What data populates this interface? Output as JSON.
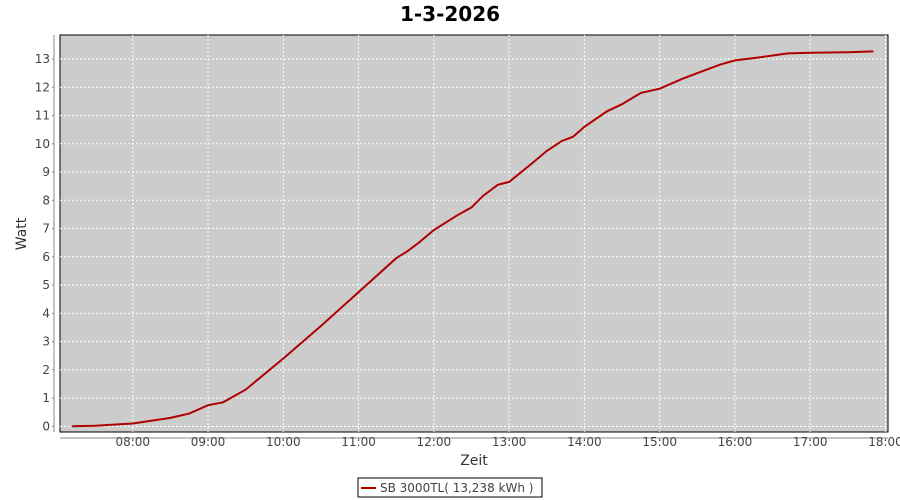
{
  "chart_data": {
    "type": "line",
    "title": "1-3-2026",
    "xlabel": "Zeit",
    "ylabel": "Watt",
    "xlim": [
      "07:02",
      "18:02"
    ],
    "ylim": [
      -0.2,
      13.85
    ],
    "x_ticks": [
      "08:00",
      "09:00",
      "10:00",
      "11:00",
      "12:00",
      "13:00",
      "14:00",
      "15:00",
      "16:00",
      "17:00",
      "18:00"
    ],
    "y_ticks": [
      0,
      1,
      2,
      3,
      4,
      5,
      6,
      7,
      8,
      9,
      10,
      11,
      12,
      13
    ],
    "grid": true,
    "legend_position": "bottom",
    "colors": {
      "series": "#b00000",
      "plot_bg": "#cccccc"
    },
    "series": [
      {
        "name": "SB 3000TL( 13,238 kWh )",
        "x": [
          "07:12",
          "07:30",
          "08:00",
          "08:30",
          "08:45",
          "09:00",
          "09:12",
          "09:30",
          "10:00",
          "10:30",
          "11:00",
          "11:30",
          "11:39",
          "11:48",
          "12:00",
          "12:18",
          "12:30",
          "12:39",
          "12:51",
          "13:00",
          "13:18",
          "13:30",
          "13:42",
          "13:51",
          "14:00",
          "14:18",
          "14:30",
          "14:45",
          "15:00",
          "15:18",
          "15:36",
          "15:48",
          "16:00",
          "16:18",
          "16:42",
          "17:00",
          "17:30",
          "17:50"
        ],
        "y": [
          0,
          0.02,
          0.1,
          0.3,
          0.45,
          0.75,
          0.85,
          1.3,
          2.4,
          3.55,
          4.75,
          5.95,
          6.2,
          6.5,
          6.95,
          7.45,
          7.75,
          8.15,
          8.55,
          8.65,
          9.3,
          9.75,
          10.1,
          10.25,
          10.6,
          11.15,
          11.4,
          11.8,
          11.95,
          12.3,
          12.6,
          12.8,
          12.95,
          13.05,
          13.2,
          13.22,
          13.24,
          13.27
        ]
      }
    ]
  }
}
